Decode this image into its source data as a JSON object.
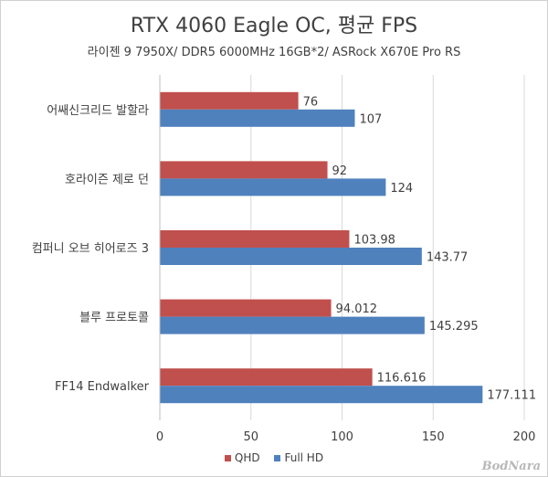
{
  "title": "RTX 4060 Eagle OC, 평균 FPS",
  "subtitle": "라이젠 9 7950X/ DDR5 6000MHz 16GB*2/ ASRock X670E Pro RS",
  "watermark": "BodNara",
  "colors": {
    "QHD": "#c0504d",
    "Full HD": "#4f81bd",
    "grid": "#d9d9d9",
    "text": "#404040"
  },
  "chart_data": {
    "type": "bar",
    "orientation": "horizontal",
    "categories": [
      "어쌔신크리드 발할라",
      "호라이즌 제로 던",
      "컴퍼니 오브 히어로즈 3",
      "블루 프로토콜",
      "FF14 Endwalker"
    ],
    "series": [
      {
        "name": "QHD",
        "values": [
          76,
          92,
          103.98,
          94.012,
          116.616
        ],
        "labels": [
          "76",
          "92",
          "103.98",
          "94.012",
          "116.616"
        ]
      },
      {
        "name": "Full HD",
        "values": [
          107,
          124,
          143.77,
          145.295,
          177.111
        ],
        "labels": [
          "107",
          "124",
          "143.77",
          "145.295",
          "177.111"
        ]
      }
    ],
    "xlim": [
      0,
      200
    ],
    "xticks": [
      "0",
      "50",
      "100",
      "150",
      "200"
    ],
    "grid": "vertical",
    "legend": "bottom"
  }
}
